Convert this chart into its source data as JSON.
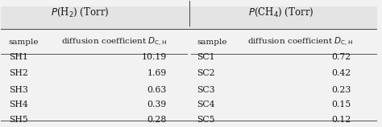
{
  "header1": "P(H₂) (Torr)",
  "header2": "P(CH₄) (Torr)",
  "col1_head": "sample",
  "col2_head": "diffusion coefficient Dₙₗᴴ",
  "col3_head": "sample",
  "col4_head": "diffusion coefficient Dₙₗᴴ",
  "left_samples": [
    "SH1",
    "SH2",
    "SH3",
    "SH4",
    "SH5"
  ],
  "left_values": [
    "10.19",
    "1.69",
    "0.63",
    "0.39",
    "0.28"
  ],
  "right_samples": [
    "SC1",
    "SC2",
    "SC3",
    "SC4",
    "SC5"
  ],
  "right_values": [
    "0.72",
    "0.42",
    "0.23",
    "0.15",
    "0.12"
  ],
  "bg_color": "#f2f2f2",
  "text_color": "#1a1a1a",
  "header_row_color": "#e0e0e0"
}
